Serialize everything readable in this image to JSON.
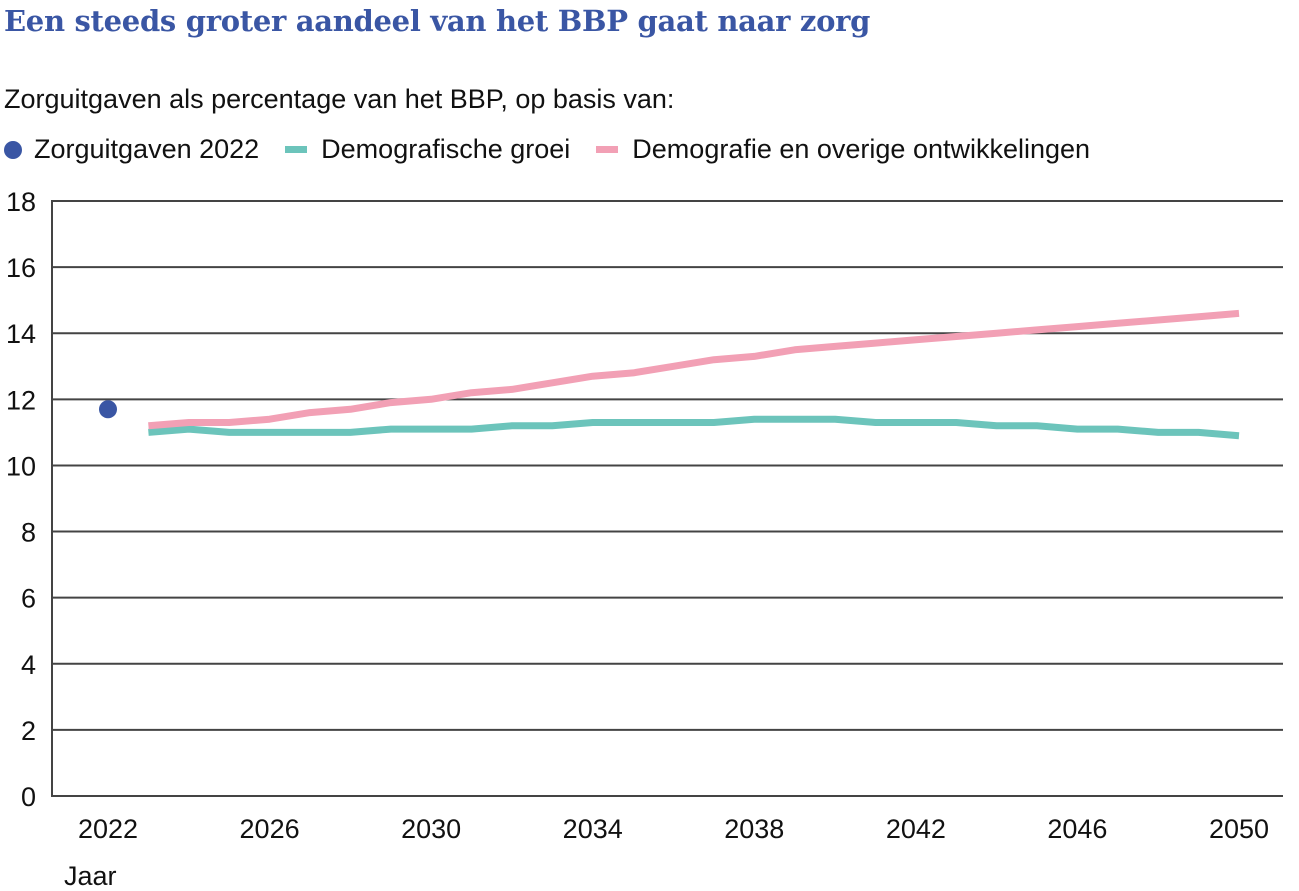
{
  "chart_data": {
    "type": "line",
    "title": "Een steeds groter aandeel van het BBP gaat naar zorg",
    "subtitle": "Zorguitgaven als percentage van het BBP, op basis van:",
    "xlabel": "Jaar",
    "ylabel": "",
    "ylim": [
      0,
      18
    ],
    "xlim": [
      2022,
      2050
    ],
    "yticks": [
      0,
      2,
      4,
      6,
      8,
      10,
      12,
      14,
      16,
      18
    ],
    "xticks": [
      2022,
      2026,
      2030,
      2034,
      2038,
      2042,
      2046,
      2050
    ],
    "grid": "horizontal",
    "legend_position": "top-left",
    "points": [
      {
        "name": "Zorguitgaven 2022",
        "color": "#3a56a4",
        "x": 2022,
        "y": 11.7
      }
    ],
    "x": [
      2023,
      2024,
      2025,
      2026,
      2027,
      2028,
      2029,
      2030,
      2031,
      2032,
      2033,
      2034,
      2035,
      2036,
      2037,
      2038,
      2039,
      2040,
      2041,
      2042,
      2043,
      2044,
      2045,
      2046,
      2047,
      2048,
      2049,
      2050
    ],
    "series": [
      {
        "name": "Demografische groei",
        "color": "#6cc4bb",
        "values": [
          11.0,
          11.1,
          11.0,
          11.0,
          11.0,
          11.0,
          11.1,
          11.1,
          11.1,
          11.2,
          11.2,
          11.3,
          11.3,
          11.3,
          11.3,
          11.4,
          11.4,
          11.4,
          11.3,
          11.3,
          11.3,
          11.2,
          11.2,
          11.1,
          11.1,
          11.0,
          11.0,
          10.9
        ]
      },
      {
        "name": "Demografie en overige ontwikkelingen",
        "color": "#f2a0b5",
        "values": [
          11.2,
          11.3,
          11.3,
          11.4,
          11.6,
          11.7,
          11.9,
          12.0,
          12.2,
          12.3,
          12.5,
          12.7,
          12.8,
          13.0,
          13.2,
          13.3,
          13.5,
          13.6,
          13.7,
          13.8,
          13.9,
          14.0,
          14.1,
          14.2,
          14.3,
          14.4,
          14.5,
          14.6
        ]
      }
    ]
  },
  "legend": {
    "items": [
      {
        "label": "Zorguitgaven 2022",
        "color": "#3a56a4",
        "marker": "dot"
      },
      {
        "label": "Demografische groei",
        "color": "#6cc4bb",
        "marker": "line"
      },
      {
        "label": "Demografie en overige ontwikkelingen",
        "color": "#f2a0b5",
        "marker": "line"
      }
    ]
  }
}
